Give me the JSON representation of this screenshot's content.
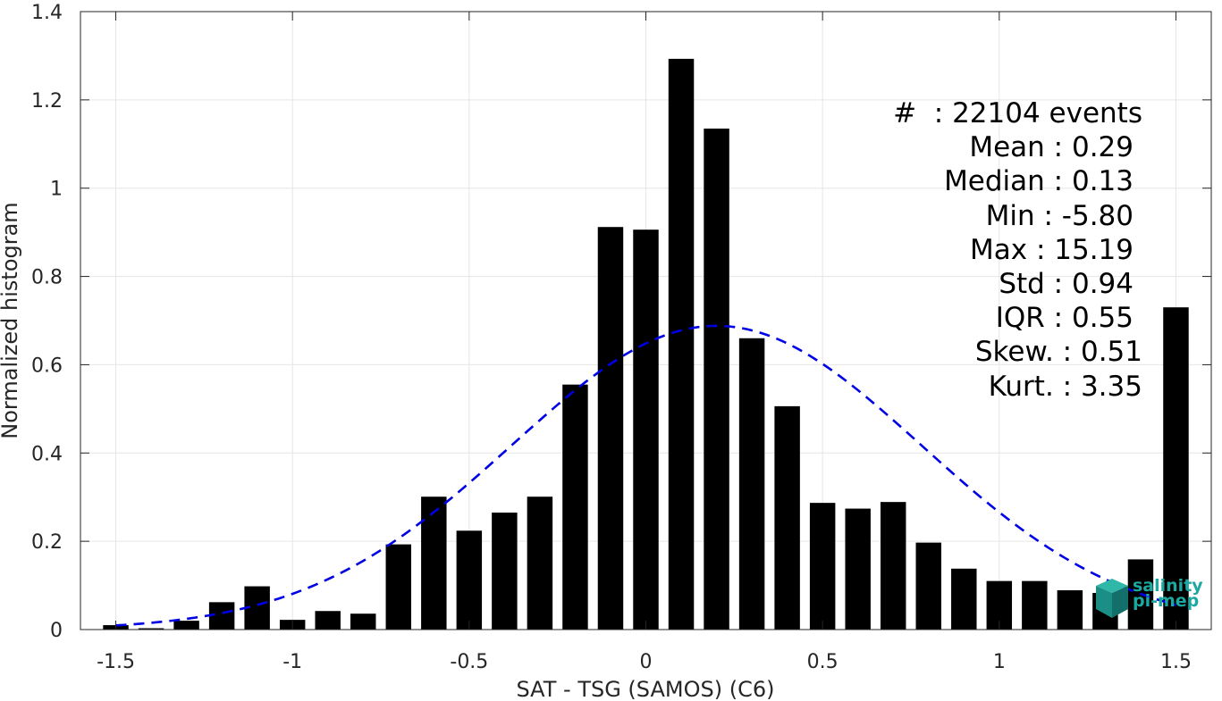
{
  "chart_data": {
    "type": "bar",
    "title": "",
    "xlabel": "SAT - TSG (SAMOS) (C6)",
    "ylabel": "Normalized histogram",
    "xlim": [
      -1.6,
      1.6
    ],
    "ylim": [
      0,
      1.4
    ],
    "xticks": [
      -1.5,
      -1,
      -0.5,
      0,
      0.5,
      1,
      1.5
    ],
    "xtick_labels": [
      "-1.5",
      "-1",
      "-0.5",
      "0",
      "0.5",
      "1",
      "1.5"
    ],
    "yticks": [
      0,
      0.2,
      0.4,
      0.6,
      0.8,
      1,
      1.2,
      1.4
    ],
    "ytick_labels": [
      "0",
      "0.2",
      "0.4",
      "0.6",
      "0.8",
      "1",
      "1.2",
      "1.4"
    ],
    "grid": true,
    "bar_color": "#000000",
    "bin_width": 0.1,
    "x": [
      -1.5,
      -1.4,
      -1.3,
      -1.2,
      -1.1,
      -1.0,
      -0.9,
      -0.8,
      -0.7,
      -0.6,
      -0.5,
      -0.4,
      -0.3,
      -0.2,
      -0.1,
      0.0,
      0.1,
      0.2,
      0.3,
      0.4,
      0.5,
      0.6,
      0.7,
      0.8,
      0.9,
      1.0,
      1.1,
      1.2,
      1.3,
      1.4,
      1.5
    ],
    "values": [
      0.01,
      0.003,
      0.02,
      0.062,
      0.098,
      0.022,
      0.042,
      0.036,
      0.193,
      0.301,
      0.224,
      0.265,
      0.301,
      0.555,
      0.912,
      0.906,
      1.293,
      1.135,
      0.66,
      0.506,
      0.287,
      0.274,
      0.289,
      0.197,
      0.138,
      0.11,
      0.11,
      0.089,
      0.083,
      0.159,
      0.73
    ],
    "fit_curve": {
      "type": "normal",
      "mean": 0.2,
      "std": 0.58,
      "peak": 0.688,
      "color": "#0000e6",
      "style": "dashed"
    },
    "annotation": {
      "lines": [
        "#  : 22104 events",
        "Mean : 0.29",
        "Median : 0.13",
        "Min : -5.80",
        "Max : 15.19",
        "Std : 0.94",
        "IQR : 0.55",
        "Skew. : 0.51",
        "Kurt. : 3.35"
      ]
    }
  },
  "logo": {
    "line1": "salinity",
    "line2": "pi-mep"
  }
}
